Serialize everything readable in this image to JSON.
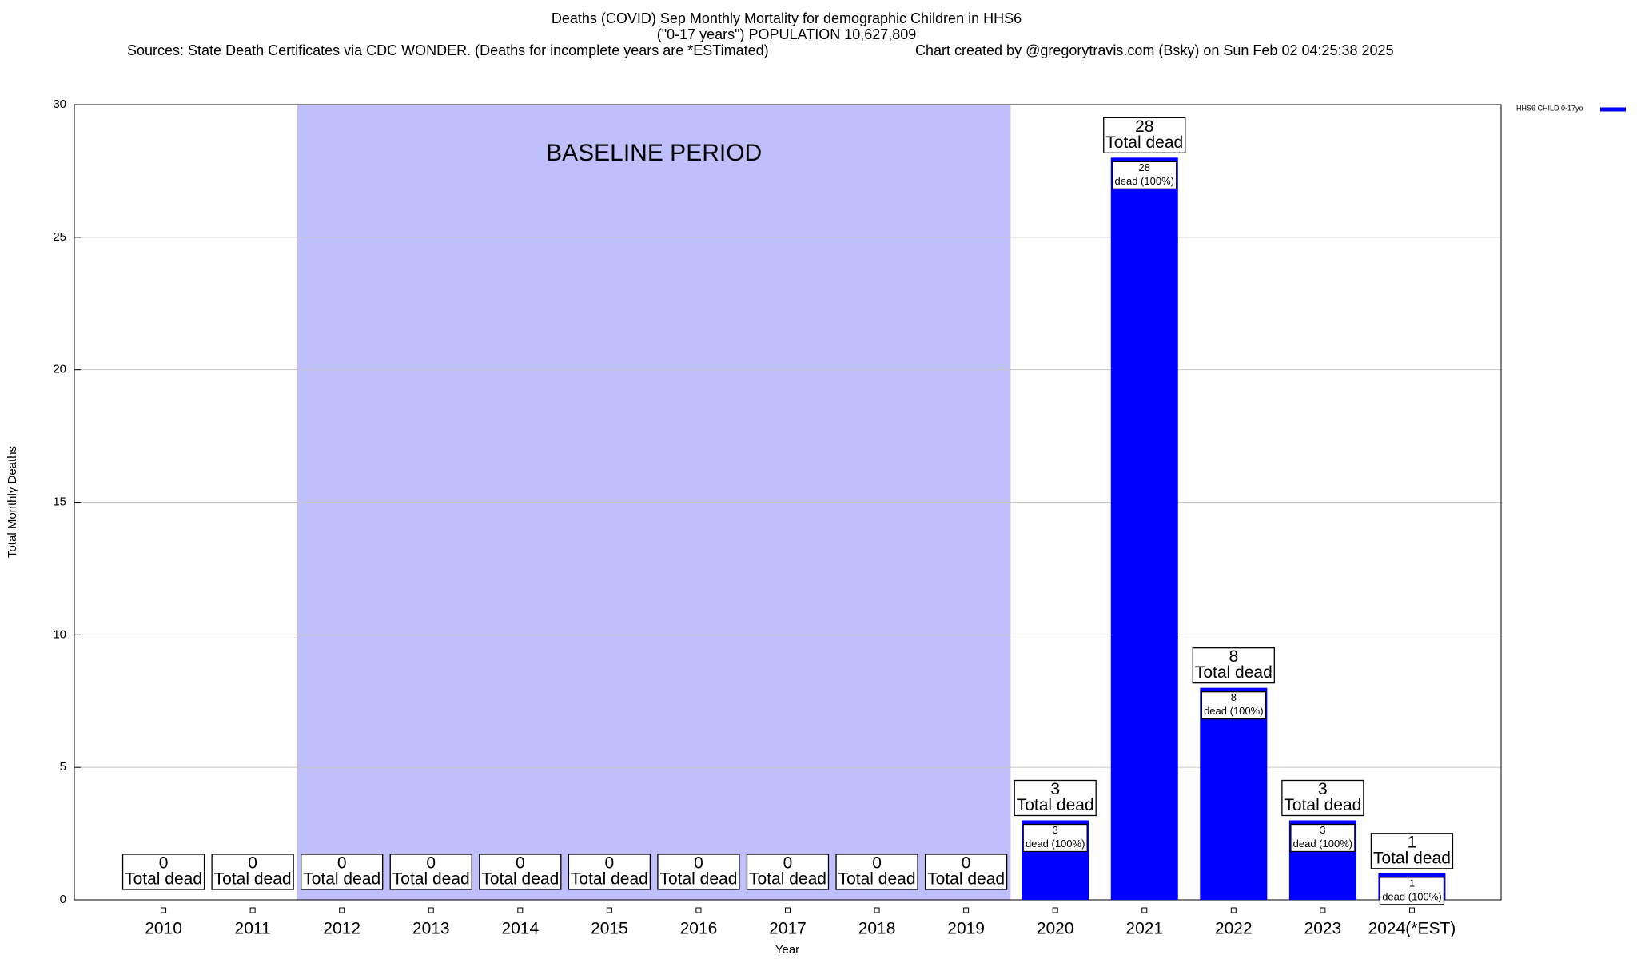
{
  "chart_data": {
    "type": "bar",
    "title": "Deaths (COVID) Sep Monthly Mortality for demographic Children in HHS6",
    "subtitle": "(\"0-17 years\") POPULATION 10,627,809",
    "sources": "Sources: State Death Certificates via CDC WONDER. (Deaths for incomplete years are *ESTimated)",
    "credit": "Chart created by @gregorytravis.com (Bsky) on Sun Feb 02 04:25:38 2025",
    "x_label": "Year",
    "y_label": "Total Monthly Deaths",
    "categories": [
      "2010",
      "2011",
      "2012",
      "2013",
      "2014",
      "2015",
      "2016",
      "2017",
      "2018",
      "2019",
      "2020",
      "2021",
      "2022",
      "2023",
      "2024(*EST)"
    ],
    "series": [
      {
        "name": "HHS6 CHILD 0-17yo",
        "color": "#0000ff",
        "values": [
          0,
          0,
          0,
          0,
          0,
          0,
          0,
          0,
          0,
          0,
          3,
          28,
          8,
          3,
          1
        ],
        "share_labels": [
          null,
          null,
          null,
          null,
          null,
          null,
          null,
          null,
          null,
          null,
          "dead (100%)",
          "dead (100%)",
          "dead (100%)",
          "dead (100%)",
          "dead (100%)"
        ]
      }
    ],
    "total_label": "Total dead",
    "baseline": {
      "label": "BASELINE PERIOD",
      "range": [
        "2012",
        "2019"
      ],
      "color": "#bfbffb"
    },
    "ylim": [
      0,
      30
    ],
    "yticks": [
      0,
      5,
      10,
      15,
      20,
      25,
      30
    ],
    "grid": true,
    "legend": "top-right"
  }
}
